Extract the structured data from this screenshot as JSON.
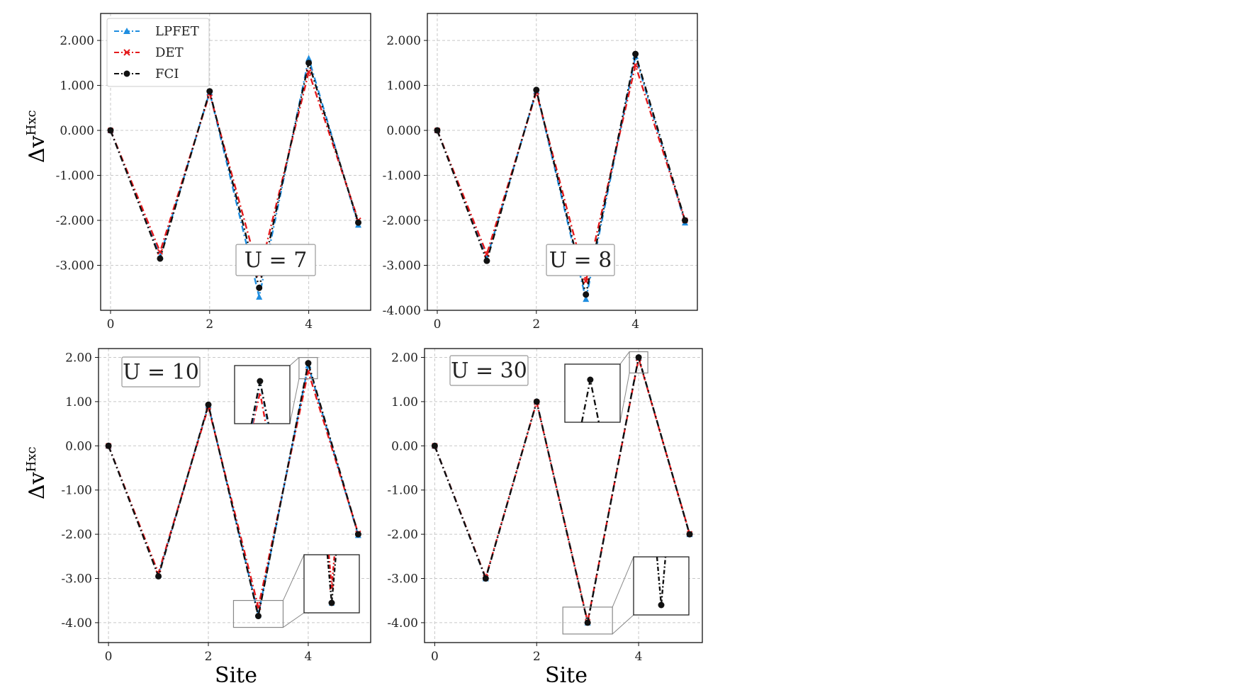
{
  "figure": {
    "xlabel": "Site",
    "ylabel_base": "Δv",
    "ylabel_sup": "Hxc",
    "legend": [
      {
        "label": "LPFET",
        "color": "#1f8ee0",
        "marker": "triangle"
      },
      {
        "label": "DET",
        "color": "#e41a1c",
        "marker": "x"
      },
      {
        "label": "FCI",
        "color": "#111111",
        "marker": "circle"
      }
    ]
  },
  "chart_data": [
    {
      "type": "line",
      "label": "U = 7",
      "x": [
        0,
        1,
        2,
        3,
        4,
        5
      ],
      "ylim": [
        -4.0,
        2.6
      ],
      "yticks": [
        2.0,
        1.0,
        0.0,
        -1.0,
        -2.0,
        -3.0
      ],
      "ytick_labels": [
        "2.000",
        "1.000",
        "0.000",
        "-1.000",
        "-2.000",
        "-3.000"
      ],
      "xticks": [
        0,
        2,
        4
      ],
      "xtick_labels": [
        "0",
        "2",
        "4"
      ],
      "series": [
        {
          "name": "LPFET",
          "values": [
            0.0,
            -2.8,
            0.85,
            -3.7,
            1.6,
            -2.1
          ]
        },
        {
          "name": "DET",
          "values": [
            0.0,
            -2.7,
            0.82,
            -3.2,
            1.3,
            -2.0
          ]
        },
        {
          "name": "FCI",
          "values": [
            0.0,
            -2.85,
            0.87,
            -3.5,
            1.5,
            -2.05
          ]
        }
      ]
    },
    {
      "type": "line",
      "label": "U = 8",
      "x": [
        0,
        1,
        2,
        3,
        4,
        5
      ],
      "ylim": [
        -4.0,
        2.6
      ],
      "yticks": [
        2.0,
        1.0,
        0.0,
        -1.0,
        -2.0,
        -3.0,
        -4.0
      ],
      "ytick_labels": [
        "2.000",
        "1.000",
        "0.000",
        "-1.000",
        "-2.000",
        "-3.000",
        "-4.000"
      ],
      "xticks": [
        0,
        2,
        4
      ],
      "xtick_labels": [
        "0",
        "2",
        "4"
      ],
      "series": [
        {
          "name": "LPFET",
          "values": [
            0.0,
            -2.85,
            0.88,
            -3.75,
            1.65,
            -2.05
          ]
        },
        {
          "name": "DET",
          "values": [
            0.0,
            -2.75,
            0.85,
            -3.35,
            1.45,
            -2.0
          ]
        },
        {
          "name": "FCI",
          "values": [
            0.0,
            -2.9,
            0.9,
            -3.65,
            1.7,
            -2.0
          ]
        }
      ]
    },
    {
      "type": "line",
      "label": "U = 10",
      "x": [
        0,
        1,
        2,
        3,
        4,
        5
      ],
      "ylim": [
        -4.45,
        2.2
      ],
      "yticks": [
        2.0,
        1.0,
        0.0,
        -1.0,
        -2.0,
        -3.0,
        -4.0
      ],
      "ytick_labels": [
        "2.00",
        "1.00",
        "0.00",
        "-1.00",
        "-2.00",
        "-3.00",
        "-4.00"
      ],
      "xticks": [
        0,
        2,
        4
      ],
      "xtick_labels": [
        "0",
        "2",
        "4"
      ],
      "series": [
        {
          "name": "LPFET",
          "values": [
            0.0,
            -2.92,
            0.92,
            -3.82,
            1.82,
            -2.02
          ]
        },
        {
          "name": "DET",
          "values": [
            0.0,
            -2.88,
            0.88,
            -3.65,
            1.68,
            -1.98
          ]
        },
        {
          "name": "FCI",
          "values": [
            0.0,
            -2.95,
            0.93,
            -3.85,
            1.87,
            -2.0
          ]
        }
      ]
    },
    {
      "type": "line",
      "label": "U = 30",
      "x": [
        0,
        1,
        2,
        3,
        4,
        5
      ],
      "ylim": [
        -4.45,
        2.2
      ],
      "yticks": [
        2.0,
        1.0,
        0.0,
        -1.0,
        -2.0,
        -3.0,
        -4.0
      ],
      "ytick_labels": [
        "2.00",
        "1.00",
        "0.00",
        "-1.00",
        "-2.00",
        "-3.00",
        "-4.00"
      ],
      "xticks": [
        0,
        2,
        4
      ],
      "xtick_labels": [
        "0",
        "2",
        "4"
      ],
      "series": [
        {
          "name": "LPFET",
          "values": [
            0.0,
            -3.0,
            1.0,
            -4.0,
            2.0,
            -2.0
          ]
        },
        {
          "name": "DET",
          "values": [
            0.0,
            -2.98,
            0.99,
            -3.98,
            1.98,
            -1.99
          ]
        },
        {
          "name": "FCI",
          "values": [
            0.0,
            -3.0,
            1.0,
            -4.0,
            2.0,
            -2.0
          ]
        }
      ]
    }
  ]
}
